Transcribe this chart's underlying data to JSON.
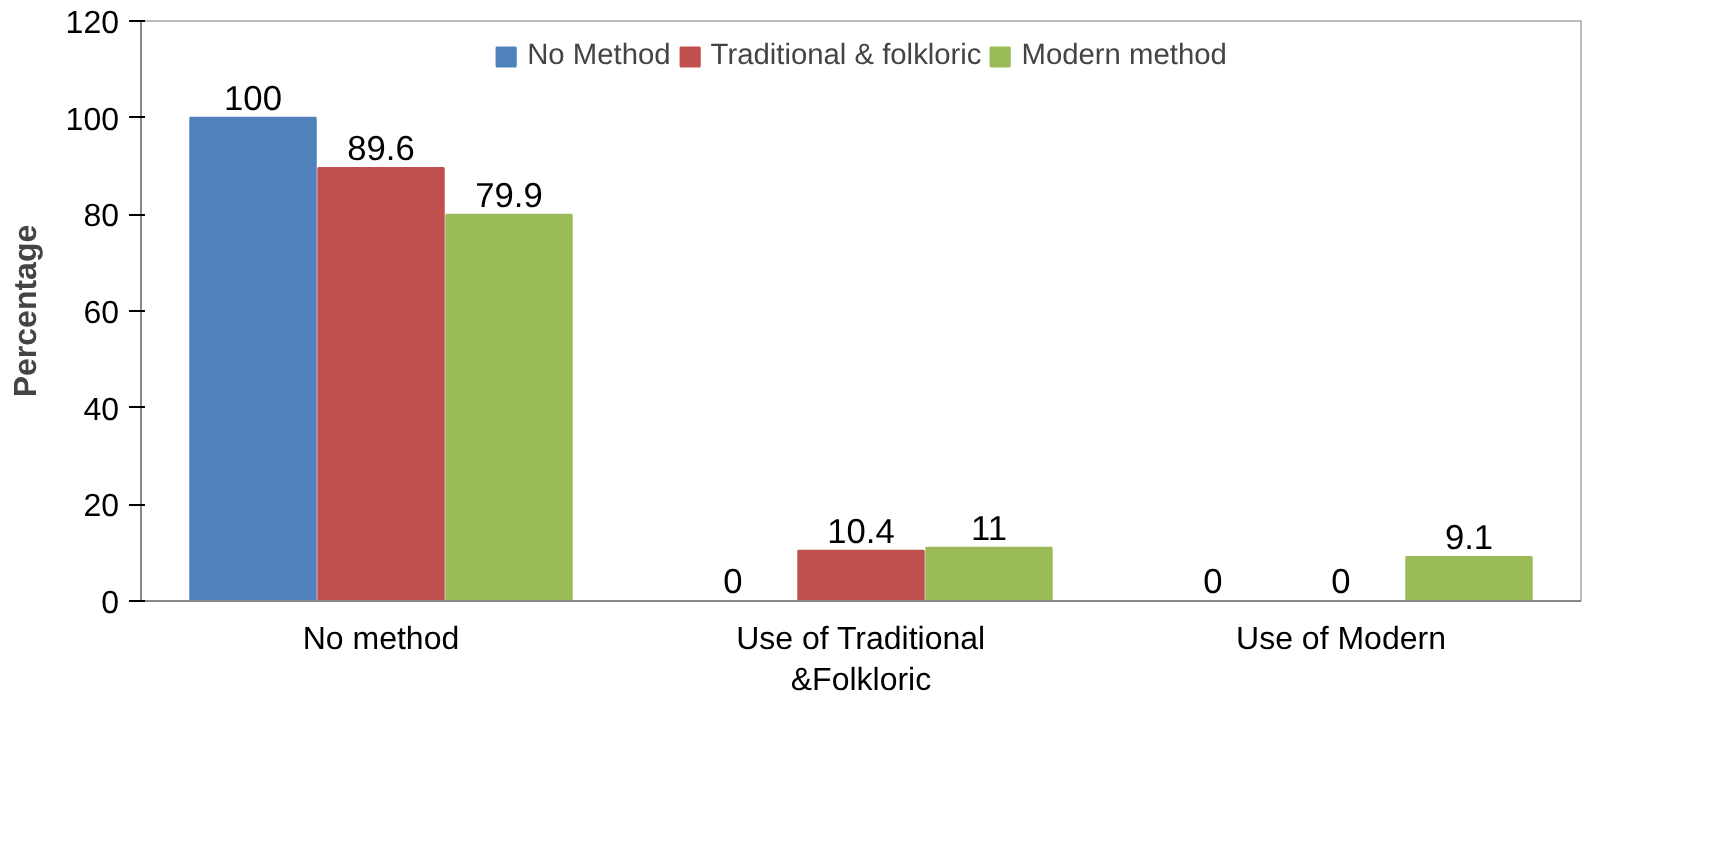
{
  "chart_data": {
    "type": "bar",
    "ylabel": "Percentage",
    "categories": [
      "No method",
      "Use of Traditional\n&Folkloric",
      "Use of Modern"
    ],
    "series": [
      {
        "name": "No Method",
        "color": "#4f81bd",
        "values": [
          100,
          0,
          0
        ]
      },
      {
        "name": "Traditional & folkloric",
        "color": "#c0504d",
        "values": [
          89.6,
          10.4,
          0
        ]
      },
      {
        "name": "Modern method",
        "color": "#9bbb59",
        "values": [
          79.9,
          11,
          9.1
        ]
      }
    ],
    "ylim": [
      0,
      120
    ],
    "yticks": [
      0,
      20,
      40,
      60,
      80,
      100,
      120
    ],
    "data_labels": true,
    "grid": false,
    "legend": "top"
  }
}
